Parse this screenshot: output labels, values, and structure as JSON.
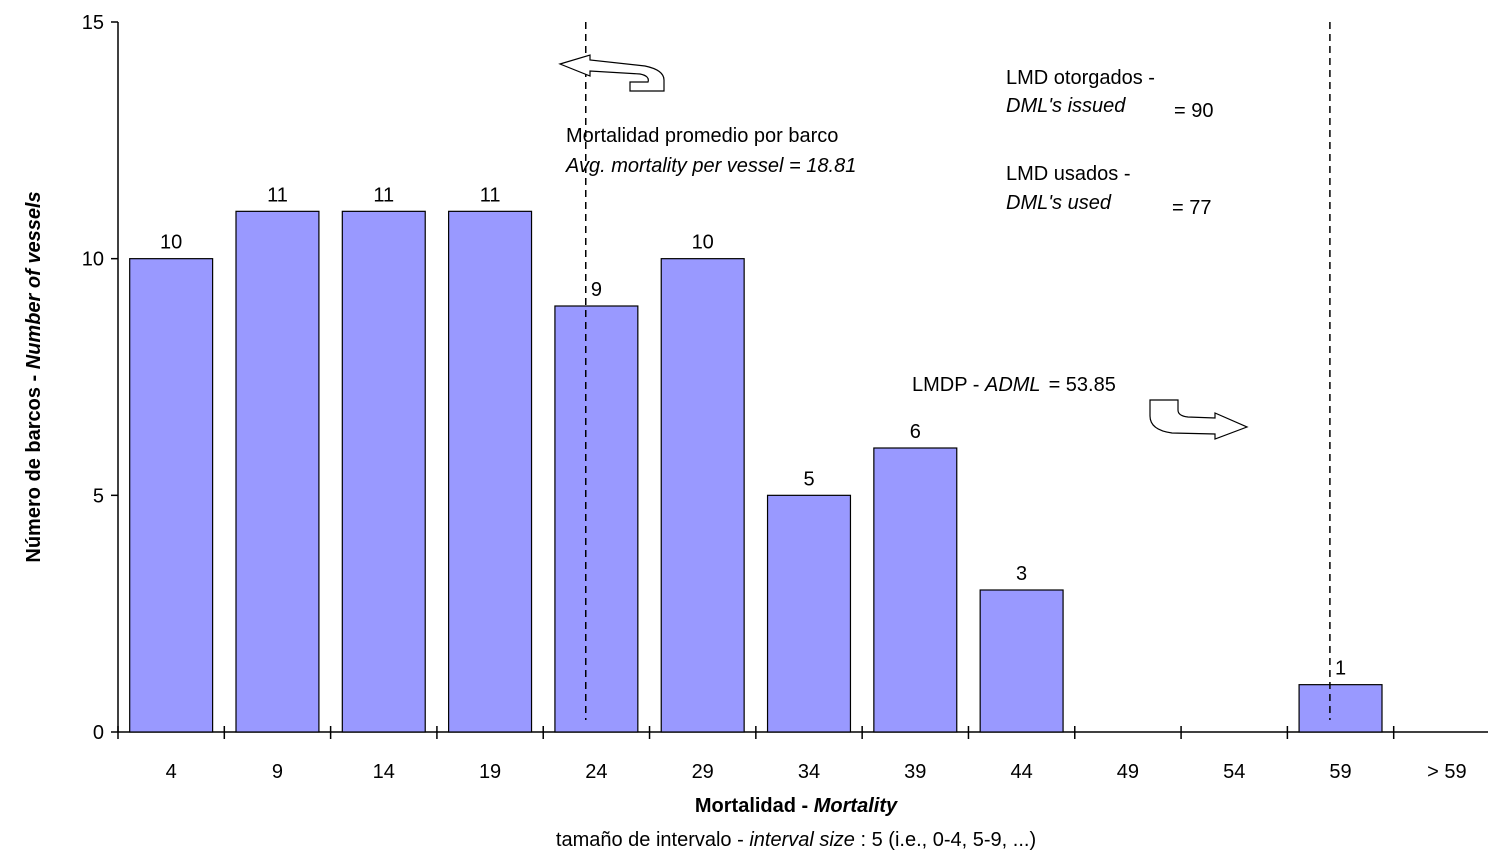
{
  "chart_data": {
    "type": "bar",
    "categories": [
      "4",
      "9",
      "14",
      "19",
      "24",
      "29",
      "34",
      "39",
      "44",
      "49",
      "54",
      "59",
      "> 59"
    ],
    "values": [
      10,
      11,
      11,
      11,
      9,
      10,
      5,
      6,
      3,
      0,
      0,
      1,
      0
    ],
    "data_labels": [
      "10",
      "11",
      "11",
      "11",
      "9",
      "10",
      "5",
      "6",
      "3",
      "",
      "",
      "1",
      ""
    ],
    "ylim": [
      0,
      15
    ],
    "yticks": [
      "0",
      "5",
      "10",
      "15"
    ],
    "bar_color": "#9999ff",
    "ylabel": {
      "plain": "Número de barcos - ",
      "italic": "Number of vessels"
    },
    "xlabel": {
      "plain": "Mortalidad - ",
      "italic": "Mortality"
    },
    "subtitle": {
      "plain": "tamaño de intervalo - ",
      "italic": "interval size",
      "rest": " : 5 (i.e., 0-4, 5-9, ...)"
    },
    "grid": false,
    "annotations": {
      "avg": {
        "line1": "Mortalidad promedio por barco",
        "line2": "Avg. mortality per vessel = 18.81",
        "x_value": 21.5
      },
      "issued": {
        "line1": "LMD otorgados -",
        "line2": "DML's issued",
        "value": "= 90"
      },
      "used": {
        "line1": "LMD usados -",
        "line2": "DML's used",
        "value": "= 77"
      },
      "adml": {
        "plain": "LMDP - ",
        "italic": "ADML",
        "value": "= 53.85",
        "x_value": 56.5
      }
    }
  }
}
